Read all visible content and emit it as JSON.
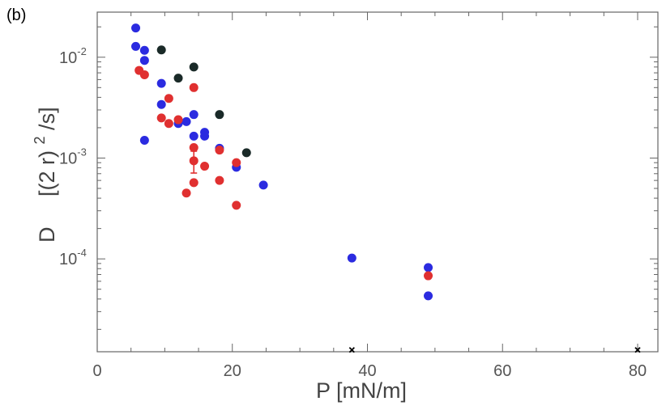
{
  "panel_label": "(b)",
  "chart_data": {
    "type": "scatter",
    "title": "",
    "xlabel": "P    [mN/m]",
    "ylabel_symbol": "D",
    "ylabel_units_prefix": "[(2 r)",
    "ylabel_units_exp": "2",
    "ylabel_units_suffix": "/s]",
    "xlim": [
      0,
      83
    ],
    "ylim": [
      1.2e-05,
      0.028
    ],
    "yscale": "log",
    "grid": false,
    "legend": "none",
    "x_ticks": [
      0,
      20,
      40,
      60,
      80
    ],
    "x_tick_labels": [
      "0",
      "20",
      "40",
      "60",
      "80"
    ],
    "y_ticks": [
      {
        "value": 0.01,
        "base": "10",
        "exp": "-2"
      },
      {
        "value": 0.001,
        "base": "10",
        "exp": "-3"
      },
      {
        "value": 0.0001,
        "base": "10",
        "exp": "-4"
      }
    ],
    "series": [
      {
        "color": "#2b2be0",
        "points": [
          [
            5.7,
            0.0195
          ],
          [
            5.7,
            0.0128
          ],
          [
            7.0,
            0.0117
          ],
          [
            7.0,
            0.0093
          ],
          [
            7.0,
            0.0015
          ],
          [
            9.5,
            0.0055
          ],
          [
            9.5,
            0.0034
          ],
          [
            12.0,
            0.0022
          ],
          [
            13.2,
            0.0023
          ],
          [
            14.3,
            0.0027
          ],
          [
            14.3,
            0.00165
          ],
          [
            15.9,
            0.0018
          ],
          [
            15.9,
            0.00165
          ],
          [
            18.1,
            0.00125
          ],
          [
            20.6,
            0.00081
          ],
          [
            24.6,
            0.00054
          ],
          [
            37.7,
            0.000102
          ],
          [
            49.0,
            8.2e-05
          ],
          [
            49.0,
            4.3e-05
          ]
        ]
      },
      {
        "color": "#e03030",
        "points": [
          [
            6.2,
            0.0074
          ],
          [
            7.0,
            0.0067
          ],
          [
            9.5,
            0.0025
          ],
          [
            10.6,
            0.0039
          ],
          [
            10.6,
            0.0022
          ],
          [
            12.0,
            0.0024
          ],
          [
            13.2,
            0.00045
          ],
          [
            14.3,
            0.005
          ],
          [
            14.3,
            0.00127
          ],
          [
            14.3,
            0.00094
          ],
          [
            14.3,
            0.00057
          ],
          [
            15.9,
            0.00083
          ],
          [
            18.1,
            0.0012
          ],
          [
            18.1,
            0.0006
          ],
          [
            20.6,
            0.0009
          ],
          [
            20.6,
            0.00034
          ],
          [
            49.0,
            6.8e-05
          ]
        ],
        "error_bars": [
          {
            "x": 14.3,
            "y_low": 0.00071,
            "y_high": 0.00117
          }
        ]
      },
      {
        "color": "#1a2a28",
        "points": [
          [
            9.5,
            0.0118
          ],
          [
            12.0,
            0.0062
          ],
          [
            14.3,
            0.008
          ],
          [
            18.1,
            0.0027
          ],
          [
            22.1,
            0.00113
          ]
        ]
      },
      {
        "color": "#000000",
        "marker": "x",
        "points": [
          [
            37.7,
            1.25e-05
          ],
          [
            80.0,
            1.25e-05
          ]
        ]
      }
    ]
  }
}
